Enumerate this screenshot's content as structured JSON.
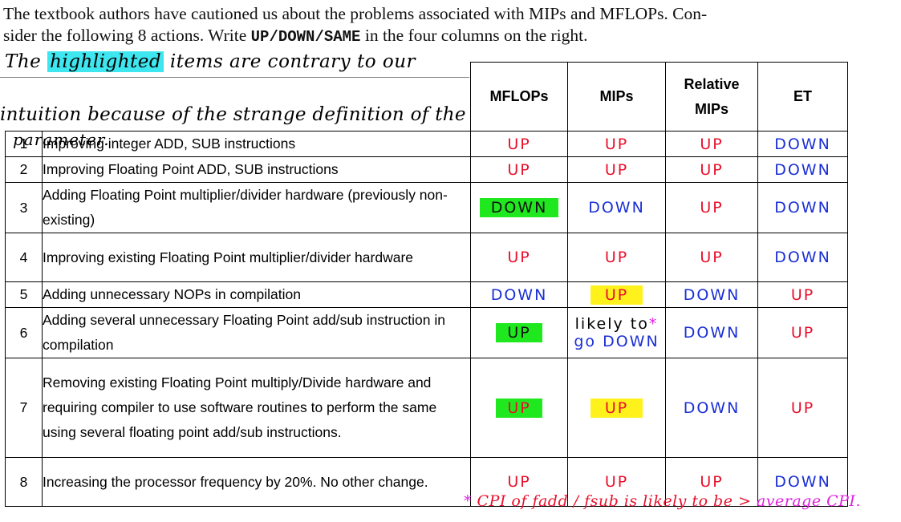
{
  "intro": {
    "line1": "The textbook authors have cautioned us about the problems associated with MIPs and MFLOPs.   Con-",
    "line2_pre": "sider the following 8 actions. Write ",
    "line2_code": "UP/DOWN/SAME",
    "line2_post": "  in the four columns on the right."
  },
  "note": {
    "part1": "The ",
    "highlight": "highlighted",
    "part2": " items are contrary to our",
    "line2": "intuition because of the strange definition of the",
    "line3": "parameter."
  },
  "headers": {
    "mflops": "MFLOPs",
    "mips": "MIPs",
    "relmips_1": "Relative",
    "relmips_2": "MIPs",
    "et": "ET"
  },
  "rows": [
    {
      "num": "1",
      "desc": "Improving integer ADD, SUB instructions",
      "mflops": "UP",
      "mips": "UP",
      "rel": "UP",
      "et": "DOWN"
    },
    {
      "num": "2",
      "desc": "Improving Floating Point ADD, SUB instructions",
      "mflops": "UP",
      "mips": "UP",
      "rel": "UP",
      "et": "DOWN"
    },
    {
      "num": "3",
      "desc": "Adding Floating Point multiplier/divider hardware (previously non-existing)",
      "mflops": "DOWN",
      "mips": "DOWN",
      "rel": "UP",
      "et": "DOWN"
    },
    {
      "num": "4",
      "desc": "Improving existing Floating Point multiplier/divider hardware",
      "mflops": "UP",
      "mips": "UP",
      "rel": "UP",
      "et": "DOWN"
    },
    {
      "num": "5",
      "desc": "Adding unnecessary NOPs in compilation",
      "mflops": "DOWN",
      "mips": "UP",
      "rel": "DOWN",
      "et": "UP"
    },
    {
      "num": "6",
      "desc": "Adding several unnecessary Floating Point add/sub instruction in compilation",
      "mflops": "UP",
      "mips_a": "likely to",
      "mips_star": "*",
      "mips_b": "go DOWN",
      "rel": "DOWN",
      "et": "UP"
    },
    {
      "num": "7",
      "desc": "Removing existing Floating Point multiply/Divide hardware and requiring compiler to use software routines to perform the same using several floating point add/sub instructions.",
      "mflops": "UP",
      "mips": "UP",
      "rel": "DOWN",
      "et": "UP"
    },
    {
      "num": "8",
      "desc": "Increasing the processor frequency by 20%. No other change.",
      "mflops": "UP",
      "mips": "UP",
      "rel": "UP",
      "et": "DOWN"
    }
  ],
  "footnote": {
    "star": "*",
    "text1": " CPI of fadd / fsub is likely to be > ",
    "text2": "average CPI."
  },
  "colors": {
    "red": "#e8102c",
    "blue": "#1a2fd6",
    "green": "#1fe81f",
    "yellow": "#fff21c",
    "cyan": "#3ee6f0",
    "magenta": "#e022e0"
  }
}
